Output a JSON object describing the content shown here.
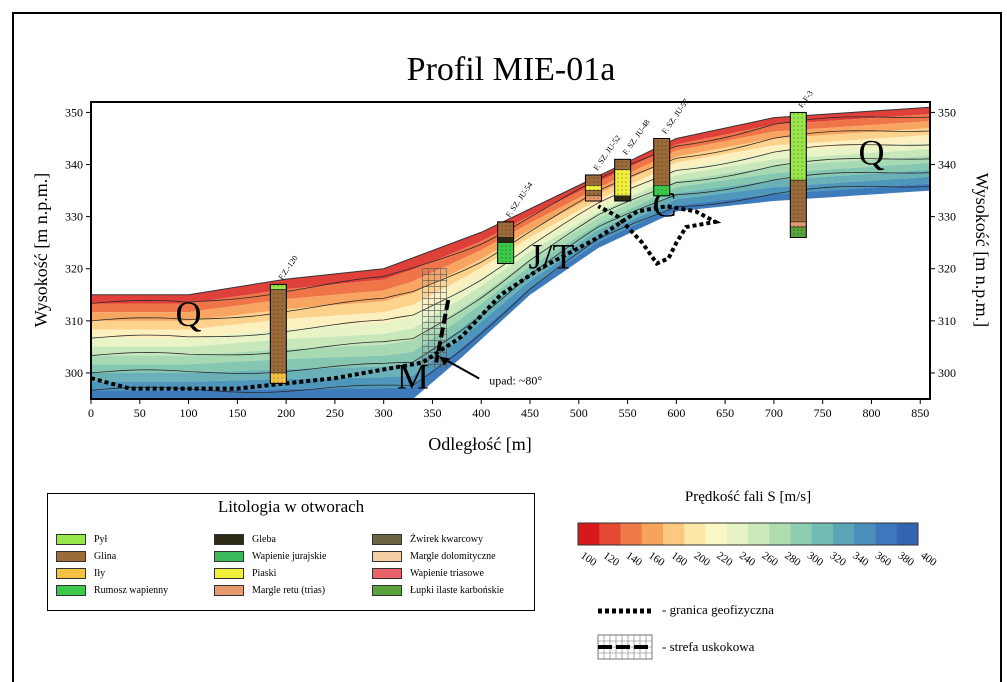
{
  "chart_data": {
    "type": "heatmap",
    "title": "Profil MIE-01a",
    "xlabel": "Odległość [m]",
    "ylabel": "Wysokość [m n.p.m.]",
    "ylabel_right": "Wysokość [m n.p.m.]",
    "xlim": [
      0,
      860
    ],
    "ylim": [
      295,
      352
    ],
    "xticks": [
      0,
      50,
      100,
      150,
      200,
      250,
      300,
      350,
      400,
      450,
      500,
      550,
      600,
      650,
      700,
      750,
      800,
      850
    ],
    "yticks": [
      300,
      310,
      320,
      330,
      340,
      350
    ],
    "surface_profile": [
      [
        0,
        315
      ],
      [
        100,
        315
      ],
      [
        200,
        318
      ],
      [
        300,
        320
      ],
      [
        400,
        327
      ],
      [
        500,
        336
      ],
      [
        600,
        345
      ],
      [
        700,
        349
      ],
      [
        860,
        351
      ]
    ],
    "bottom_profile": [
      [
        0,
        295
      ],
      [
        330,
        295
      ],
      [
        380,
        303
      ],
      [
        450,
        315
      ],
      [
        520,
        324
      ],
      [
        600,
        331
      ],
      [
        700,
        333
      ],
      [
        860,
        335
      ]
    ],
    "geophysical_boundary": [
      [
        0,
        299
      ],
      [
        40,
        297
      ],
      [
        150,
        297
      ],
      [
        250,
        299
      ],
      [
        340,
        302
      ],
      [
        380,
        307
      ],
      [
        420,
        315
      ],
      [
        460,
        320
      ],
      [
        520,
        326
      ],
      [
        560,
        331
      ],
      [
        590,
        332
      ],
      [
        620,
        331
      ],
      [
        640,
        329
      ],
      [
        610,
        328
      ],
      [
        600,
        325
      ],
      [
        592,
        322
      ],
      [
        580,
        321
      ],
      [
        565,
        325
      ],
      [
        540,
        330
      ],
      [
        520,
        332
      ]
    ],
    "fault": {
      "x": 360,
      "y_top": 314,
      "y_bottom": 302,
      "zone_x": [
        340,
        365
      ],
      "zone_y": [
        301,
        320
      ],
      "dip_label": "upad: ~80°"
    },
    "unit_labels": [
      {
        "text": "Q",
        "x": 100,
        "y": 309
      },
      {
        "text": "M",
        "x": 330,
        "y": 297
      },
      {
        "text": "J/T",
        "x": 472,
        "y": 320
      },
      {
        "text": "C",
        "x": 588,
        "y": 330
      },
      {
        "text": "Q",
        "x": 800,
        "y": 340
      }
    ],
    "boreholes": [
      {
        "name": "F.Z.-120",
        "x": 192,
        "top": 317,
        "layers": [
          {
            "litho": "pyl",
            "from": 317,
            "to": 316
          },
          {
            "litho": "glina",
            "from": 316,
            "to": 300
          },
          {
            "litho": "ily",
            "from": 300,
            "to": 298
          }
        ]
      },
      {
        "name": "F. SZ. JU-54",
        "x": 425,
        "top": 329,
        "layers": [
          {
            "litho": "glina",
            "from": 329,
            "to": 326
          },
          {
            "litho": "gleba",
            "from": 326,
            "to": 325
          },
          {
            "litho": "rumosz",
            "from": 325,
            "to": 321
          }
        ]
      },
      {
        "name": "F. SZ. JU-52",
        "x": 515,
        "top": 338,
        "layers": [
          {
            "litho": "glina",
            "from": 338,
            "to": 336
          },
          {
            "litho": "piaski",
            "from": 336,
            "to": 335
          },
          {
            "litho": "glina",
            "from": 335,
            "to": 334
          },
          {
            "litho": "margle_retu",
            "from": 334,
            "to": 333
          }
        ]
      },
      {
        "name": "F. SZ. JU-48",
        "x": 545,
        "top": 341,
        "layers": [
          {
            "litho": "glina",
            "from": 341,
            "to": 339
          },
          {
            "litho": "piaski",
            "from": 339,
            "to": 334
          },
          {
            "litho": "gleba",
            "from": 334,
            "to": 333
          }
        ]
      },
      {
        "name": "F. SZ. JU-57",
        "x": 585,
        "top": 345,
        "layers": [
          {
            "litho": "glina",
            "from": 345,
            "to": 336
          },
          {
            "litho": "rumosz",
            "from": 336,
            "to": 334
          }
        ]
      },
      {
        "name": "F. F-3",
        "x": 725,
        "top": 350,
        "layers": [
          {
            "litho": "pyl",
            "from": 350,
            "to": 337
          },
          {
            "litho": "glina",
            "from": 337,
            "to": 329
          },
          {
            "litho": "margle_retu",
            "from": 329,
            "to": 328
          },
          {
            "litho": "lupki",
            "from": 328,
            "to": 326
          }
        ]
      }
    ],
    "colorbar": {
      "title": "Prędkość fali S [m/s]",
      "ticks": [
        "100",
        "120",
        "140",
        "160",
        "180",
        "200",
        "220",
        "240",
        "260",
        "280",
        "300",
        "320",
        "340",
        "360",
        "380",
        "400"
      ],
      "colors": [
        "#d7191c",
        "#e44a33",
        "#ef7a4a",
        "#f7a35c",
        "#fdc981",
        "#fee8a9",
        "#fbf6c6",
        "#e6f3c3",
        "#cbe9b9",
        "#afddb2",
        "#8fcdb0",
        "#73bcb4",
        "#5aa6b7",
        "#4a8ebc",
        "#3f77bd",
        "#3465b0"
      ]
    }
  },
  "legend": {
    "title": "Litologia w otworach",
    "items": [
      {
        "key": "pyl",
        "label": "Pył",
        "color": "#99e64a"
      },
      {
        "key": "glina",
        "label": "Glina",
        "color": "#9c6b3a"
      },
      {
        "key": "ily",
        "label": "Iły",
        "color": "#f3c243"
      },
      {
        "key": "rumosz",
        "label": "Rumosz wapienny",
        "color": "#3cc94a"
      },
      {
        "key": "gleba",
        "label": "Gleba",
        "color": "#2c2a12"
      },
      {
        "key": "wapienie_jur",
        "label": "Wapienie jurajskie",
        "color": "#39b85c"
      },
      {
        "key": "piaski",
        "label": "Piaski",
        "color": "#f2ee3c"
      },
      {
        "key": "margle_retu",
        "label": "Margle retu (trias)",
        "color": "#e69a6e"
      },
      {
        "key": "zwirek",
        "label": "Żwirek kwarcowy",
        "color": "#6b6545"
      },
      {
        "key": "margle_dol",
        "label": "Margle dolomityczne",
        "color": "#f5cfa6"
      },
      {
        "key": "wapienie_tr",
        "label": "Wapienie triasowe",
        "color": "#e8646a"
      },
      {
        "key": "lupki",
        "label": "Łupki ilaste karbońskie",
        "color": "#5aa23c"
      }
    ]
  },
  "notes": {
    "boundary": "- granica geofizyczna",
    "fault_zone": "- strefa uskokowa"
  }
}
